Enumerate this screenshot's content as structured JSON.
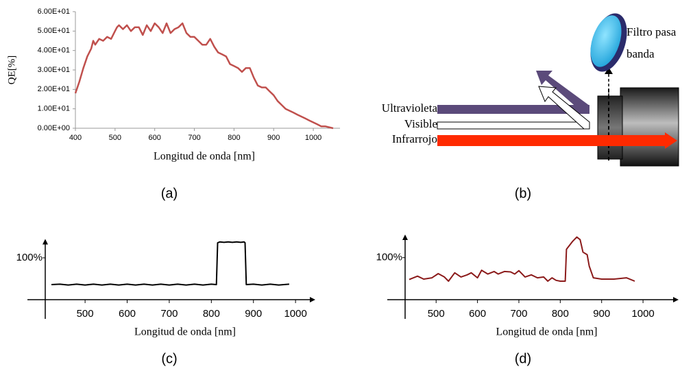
{
  "chart_data": [
    {
      "type": "line",
      "ylabel": "QE[%]",
      "xlabel": "Longitud de onda [nm]",
      "color": "#c0504d",
      "x": [
        400,
        410,
        420,
        430,
        440,
        445,
        450,
        460,
        470,
        480,
        490,
        500,
        505,
        510,
        520,
        530,
        540,
        550,
        560,
        570,
        580,
        590,
        600,
        610,
        620,
        630,
        640,
        650,
        660,
        670,
        680,
        690,
        700,
        710,
        720,
        730,
        740,
        750,
        760,
        770,
        780,
        790,
        800,
        810,
        820,
        830,
        840,
        850,
        860,
        870,
        880,
        890,
        900,
        910,
        920,
        930,
        940,
        950,
        960,
        970,
        980,
        990,
        1000,
        1010,
        1020,
        1030,
        1040,
        1050
      ],
      "values": [
        18,
        24,
        31,
        37,
        41,
        45,
        43,
        46,
        45,
        47,
        46,
        50,
        52,
        53,
        51,
        53,
        50,
        52,
        52,
        48,
        53,
        50,
        54,
        52,
        49,
        54,
        49,
        51,
        52,
        54,
        49,
        47,
        47,
        45,
        43,
        43,
        46,
        42,
        39,
        38,
        37,
        33,
        32,
        31,
        29,
        31,
        31,
        26,
        22,
        21,
        21,
        19,
        17,
        14,
        12,
        10,
        9,
        8,
        7,
        6,
        5,
        4,
        3,
        2,
        1,
        1,
        0.5,
        0
      ],
      "xlim": [
        400,
        1050
      ],
      "xticks": [
        400,
        500,
        600,
        700,
        800,
        900,
        1000
      ],
      "ylim": [
        0,
        60
      ],
      "yticks": [
        {
          "value": 0,
          "label": "0.00E+00"
        },
        {
          "value": 10,
          "label": "1.00E+01"
        },
        {
          "value": 20,
          "label": "2.00E+01"
        },
        {
          "value": 30,
          "label": "3.00E+01"
        },
        {
          "value": 40,
          "label": "4.00E+01"
        },
        {
          "value": 50,
          "label": "5.00E+01"
        },
        {
          "value": 60,
          "label": "6.00E+01"
        }
      ]
    },
    {
      "type": "line",
      "xlabel": "Longitud de onda [nm]",
      "color": "#000000",
      "x": [
        420,
        440,
        460,
        480,
        500,
        520,
        540,
        560,
        580,
        600,
        620,
        640,
        660,
        680,
        700,
        720,
        740,
        760,
        780,
        800,
        812,
        815,
        820,
        830,
        840,
        850,
        860,
        870,
        878,
        880,
        883,
        900,
        920,
        940,
        960,
        985
      ],
      "values": [
        36,
        37,
        35,
        37,
        35,
        37,
        35,
        37,
        35,
        37,
        35,
        37,
        35,
        37,
        35,
        37,
        35,
        37,
        35,
        37,
        36,
        136,
        138,
        137,
        138,
        137,
        138,
        137,
        138,
        136,
        36,
        37,
        35,
        37,
        35,
        37
      ],
      "xlim": [
        363,
        1047
      ],
      "xticks": [
        500,
        600,
        700,
        800,
        900,
        1000
      ],
      "ylim": [
        0,
        145
      ],
      "yticks": [
        {
          "value": 100,
          "label": "100%"
        }
      ]
    },
    {
      "type": "line",
      "xlabel": "Longitud de onda [nm]",
      "color": "#8b1a1a",
      "x": [
        435,
        455,
        470,
        490,
        505,
        520,
        530,
        545,
        560,
        575,
        585,
        600,
        610,
        625,
        640,
        650,
        665,
        680,
        690,
        700,
        715,
        730,
        745,
        760,
        770,
        780,
        790,
        800,
        812,
        815,
        830,
        840,
        848,
        855,
        865,
        870,
        880,
        900,
        930,
        960,
        980
      ],
      "values": [
        48,
        56,
        49,
        52,
        62,
        54,
        44,
        64,
        54,
        59,
        64,
        52,
        70,
        61,
        67,
        61,
        67,
        66,
        61,
        69,
        54,
        59,
        52,
        54,
        44,
        52,
        46,
        44,
        44,
        120,
        139,
        149,
        143,
        113,
        107,
        80,
        52,
        49,
        49,
        52,
        44
      ],
      "xlim": [
        382,
        1086
      ],
      "xticks": [
        500,
        600,
        700,
        800,
        900,
        1000
      ],
      "ylim": [
        0,
        155
      ],
      "yticks": [
        {
          "value": 100,
          "label": "100%"
        }
      ]
    }
  ],
  "diagram": {
    "beams": [
      "Ultravioleta",
      "Visible",
      "Infrarrojo"
    ],
    "filter_label": [
      "Filtro pasa",
      "banda"
    ]
  },
  "captions": [
    "(a)",
    "(b)",
    "(c)",
    "(d)"
  ]
}
